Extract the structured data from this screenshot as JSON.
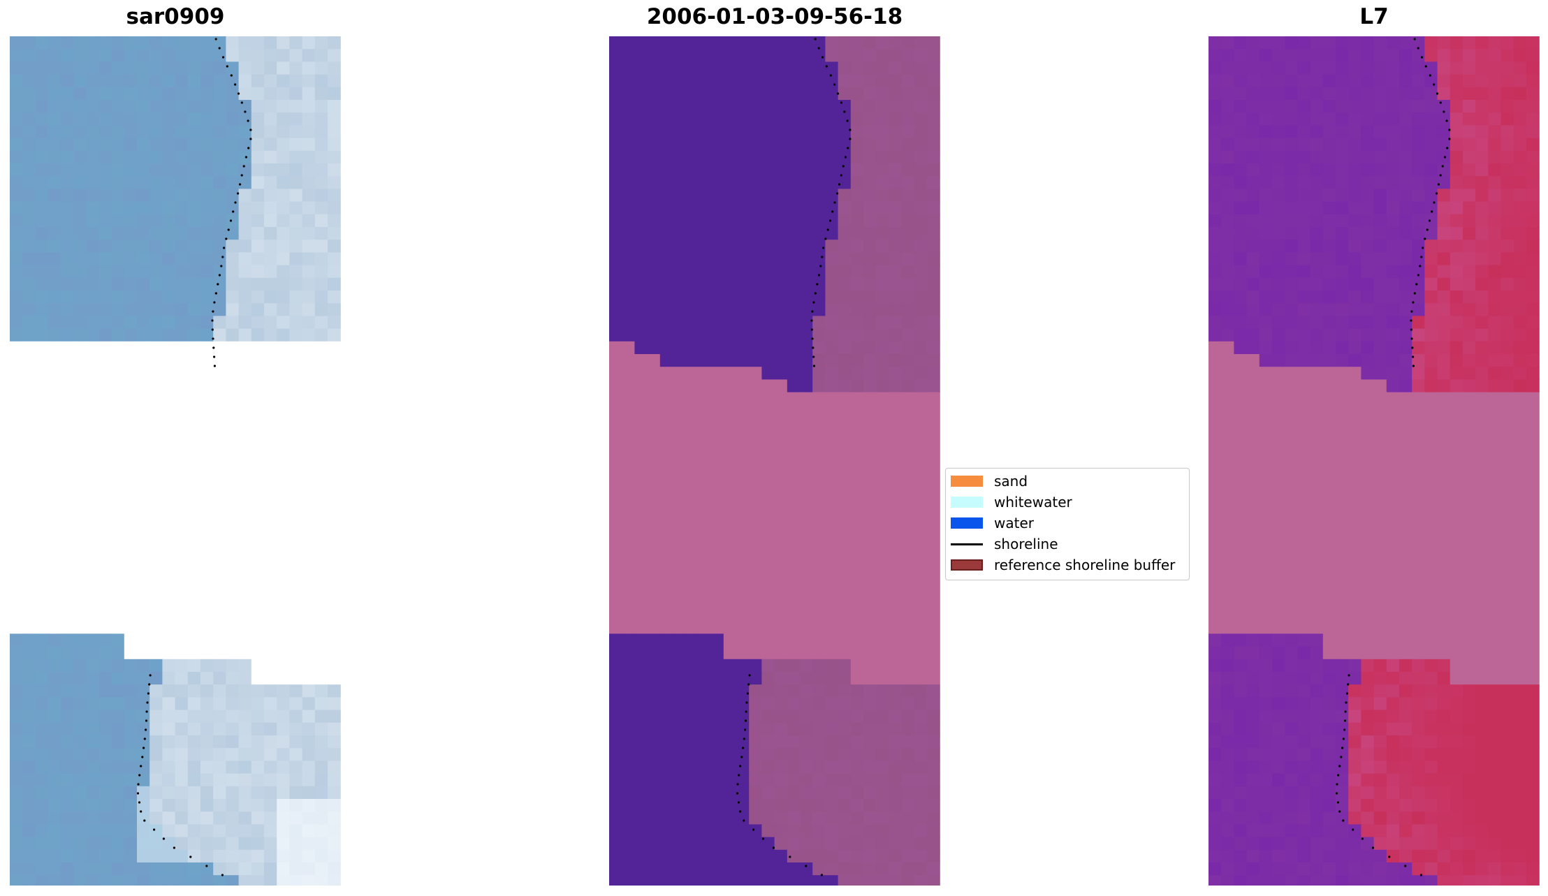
{
  "panels": [
    {
      "title": "sar0909",
      "kind": "rgb"
    },
    {
      "title": "2006-01-03-09-56-18",
      "kind": "classified"
    },
    {
      "title": "L7",
      "kind": "mndwi"
    }
  ],
  "legend": {
    "items": [
      {
        "label": "sand",
        "color": "#f68c3e",
        "kind": "patch"
      },
      {
        "label": "whitewater",
        "color": "#c6fcfd",
        "kind": "patch"
      },
      {
        "label": "water",
        "color": "#0a55ec",
        "kind": "patch"
      },
      {
        "label": "shoreline",
        "color": "#000000",
        "kind": "line"
      },
      {
        "label": "reference shoreline buffer",
        "color": "#9b3a3a",
        "kind": "patch"
      }
    ]
  },
  "colors": {
    "rgb_water": "#6fa3c8",
    "rgb_land": "#b9cde0",
    "class_water": "#532498",
    "class_nodata": "#bc6698",
    "class_land": "#9a5591",
    "mndwi_water": "#7a2aa8",
    "mndwi_nodata": "#bc6698",
    "mndwi_land": "#c8305c",
    "shoreline_dots": "#000000"
  }
}
